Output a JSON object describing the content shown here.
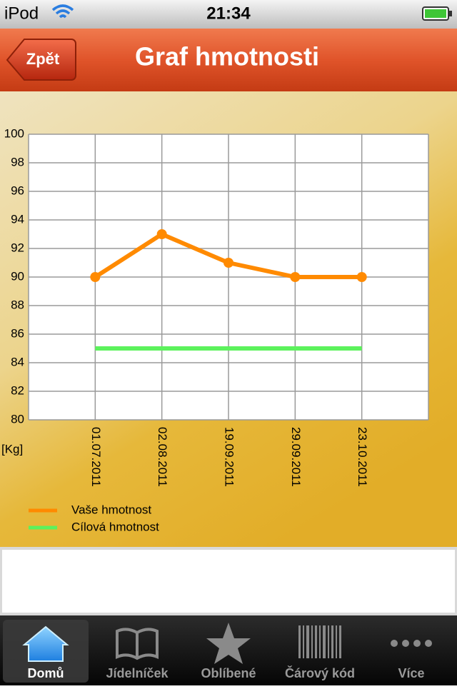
{
  "status_bar": {
    "carrier": "iPod",
    "time": "21:34"
  },
  "nav_bar": {
    "back_button": "Zpět",
    "title": "Graf hmotnosti"
  },
  "chart_data": {
    "type": "line",
    "categories": [
      "01.07.2011",
      "02.08.2011",
      "19.09.2011",
      "29.09.2011",
      "23.10.2011"
    ],
    "series": [
      {
        "name": "Vaše hmotnost",
        "color": "#ff8a00",
        "values": [
          90,
          93,
          91,
          90,
          90
        ]
      },
      {
        "name": "Cílová hmotnost",
        "color": "#5cf25c",
        "values": [
          85,
          85,
          85,
          85,
          85
        ]
      }
    ],
    "ylabel": "[Kg]",
    "ylim": [
      80,
      100
    ],
    "yticks": [
      80,
      82,
      84,
      86,
      88,
      90,
      92,
      94,
      96,
      98,
      100
    ],
    "grid": true
  },
  "tab_bar": {
    "items": [
      "Domů",
      "Jídelníček",
      "Oblíbené",
      "Čárový kód",
      "Více"
    ],
    "selected": 0
  }
}
